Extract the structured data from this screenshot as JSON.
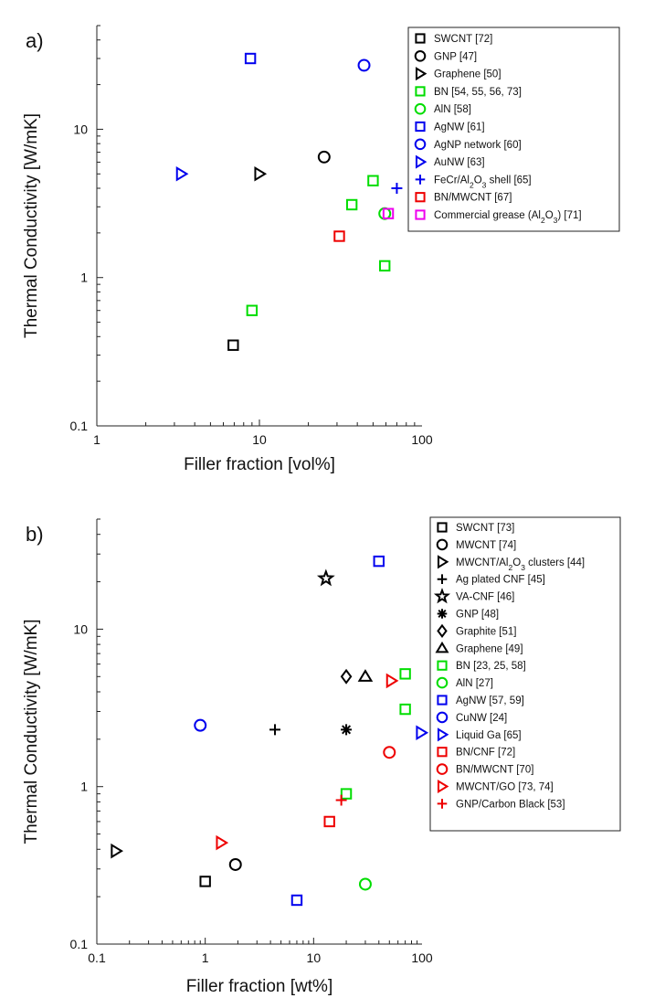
{
  "chart_data": [
    {
      "type": "scatter",
      "panel_label": "a)",
      "xlabel": "Filler fraction [vol%]",
      "ylabel": "Thermal Conductivity [W/mK]",
      "xscale": "log",
      "yscale": "log",
      "xlim": [
        1,
        100
      ],
      "ylim": [
        0.1,
        50
      ],
      "xticks": [
        {
          "value": 1,
          "label": "1"
        },
        {
          "value": 10,
          "label": "10"
        },
        {
          "value": 100,
          "label": "100"
        }
      ],
      "yticks": [
        {
          "value": 0.1,
          "label": "0.1"
        },
        {
          "value": 1,
          "label": "1"
        },
        {
          "value": 10,
          "label": "10"
        }
      ],
      "legend_position": "top-right",
      "series": [
        {
          "name": "SWCNT [72]",
          "marker": "square",
          "color": "#000000",
          "points": [
            {
              "x": 6.9,
              "y": 0.35
            }
          ]
        },
        {
          "name": "GNP [47]",
          "marker": "circle",
          "color": "#000000",
          "points": [
            {
              "x": 25,
              "y": 6.5
            }
          ]
        },
        {
          "name": "Graphene [50]",
          "marker": "triangle-right",
          "color": "#000000",
          "points": [
            {
              "x": 10,
              "y": 5.0
            }
          ]
        },
        {
          "name": "BN [54, 55, 56, 73]",
          "marker": "square",
          "color": "#00dd00",
          "points": [
            {
              "x": 9,
              "y": 0.6
            },
            {
              "x": 37,
              "y": 3.1
            },
            {
              "x": 50,
              "y": 4.5
            },
            {
              "x": 59,
              "y": 1.2
            }
          ]
        },
        {
          "name": "AlN [58]",
          "marker": "circle",
          "color": "#00dd00",
          "points": [
            {
              "x": 59,
              "y": 2.7
            }
          ]
        },
        {
          "name": "AgNW [61]",
          "marker": "square",
          "color": "#0000ee",
          "points": [
            {
              "x": 8.8,
              "y": 30
            }
          ]
        },
        {
          "name": "AgNP network [60]",
          "marker": "circle",
          "color": "#0000ee",
          "points": [
            {
              "x": 44,
              "y": 27
            }
          ]
        },
        {
          "name": "AuNW [63]",
          "marker": "triangle-right",
          "color": "#0000ee",
          "points": [
            {
              "x": 3.3,
              "y": 5.0
            }
          ]
        },
        {
          "name": "FeCr/Al₂O₃ shell [65]",
          "marker": "plus",
          "color": "#0000ee",
          "points": [
            {
              "x": 70,
              "y": 4.0
            }
          ]
        },
        {
          "name": "BN/MWCNT [67]",
          "marker": "square",
          "color": "#ee0000",
          "points": [
            {
              "x": 31,
              "y": 1.9
            }
          ]
        },
        {
          "name": "Commercial grease (Al₂O₃) [71]",
          "marker": "square",
          "color": "#ee00ee",
          "points": [
            {
              "x": 62,
              "y": 2.7
            }
          ]
        }
      ]
    },
    {
      "type": "scatter",
      "panel_label": "b)",
      "xlabel": "Filler fraction [wt%]",
      "ylabel": "Thermal Conductivity [W/mK]",
      "xscale": "log",
      "yscale": "log",
      "xlim": [
        0.1,
        100
      ],
      "ylim": [
        0.1,
        50
      ],
      "xticks": [
        {
          "value": 0.1,
          "label": "0.1"
        },
        {
          "value": 1,
          "label": "1"
        },
        {
          "value": 10,
          "label": "10"
        },
        {
          "value": 100,
          "label": "100"
        }
      ],
      "yticks": [
        {
          "value": 0.1,
          "label": "0.1"
        },
        {
          "value": 1,
          "label": "1"
        },
        {
          "value": 10,
          "label": "10"
        }
      ],
      "legend_position": "top-right",
      "series": [
        {
          "name": "SWCNT [73]",
          "marker": "square",
          "color": "#000000",
          "points": [
            {
              "x": 1.0,
              "y": 0.25
            }
          ]
        },
        {
          "name": "MWCNT [74]",
          "marker": "circle",
          "color": "#000000",
          "points": [
            {
              "x": 1.9,
              "y": 0.32
            }
          ]
        },
        {
          "name": "MWCNT/Al₂O₃ clusters [44]",
          "marker": "triangle-right",
          "color": "#000000",
          "points": [
            {
              "x": 0.15,
              "y": 0.39
            }
          ]
        },
        {
          "name": "Ag plated CNF [45]",
          "marker": "plus",
          "color": "#000000",
          "points": [
            {
              "x": 4.4,
              "y": 2.3
            }
          ]
        },
        {
          "name": "VA-CNF [46]",
          "marker": "star",
          "color": "#000000",
          "points": [
            {
              "x": 13,
              "y": 21
            }
          ]
        },
        {
          "name": "GNP [48]",
          "marker": "asterisk",
          "color": "#000000",
          "points": [
            {
              "x": 20,
              "y": 2.3
            }
          ]
        },
        {
          "name": "Graphite [51]",
          "marker": "diamond",
          "color": "#000000",
          "points": [
            {
              "x": 20,
              "y": 5.0
            }
          ]
        },
        {
          "name": "Graphene [49]",
          "marker": "triangle-up",
          "color": "#000000",
          "points": [
            {
              "x": 30,
              "y": 5.0
            }
          ]
        },
        {
          "name": "BN [23, 25, 58]",
          "marker": "square",
          "color": "#00dd00",
          "points": [
            {
              "x": 20,
              "y": 0.9
            },
            {
              "x": 70,
              "y": 5.2
            },
            {
              "x": 70,
              "y": 3.1
            }
          ]
        },
        {
          "name": "AlN [27]",
          "marker": "circle",
          "color": "#00dd00",
          "points": [
            {
              "x": 30,
              "y": 0.24
            }
          ]
        },
        {
          "name": "AgNW [57, 59]",
          "marker": "square",
          "color": "#0000ee",
          "points": [
            {
              "x": 7,
              "y": 0.19
            },
            {
              "x": 40,
              "y": 27
            }
          ]
        },
        {
          "name": "CuNW [24]",
          "marker": "circle",
          "color": "#0000ee",
          "points": [
            {
              "x": 0.9,
              "y": 2.45
            }
          ]
        },
        {
          "name": "Liquid Ga [65]",
          "marker": "triangle-right",
          "color": "#0000ee",
          "points": [
            {
              "x": 98,
              "y": 2.2
            }
          ]
        },
        {
          "name": "BN/CNF [72]",
          "marker": "square",
          "color": "#ee0000",
          "points": [
            {
              "x": 14,
              "y": 0.6
            }
          ]
        },
        {
          "name": "BN/MWCNT [70]",
          "marker": "circle",
          "color": "#ee0000",
          "points": [
            {
              "x": 50,
              "y": 1.65
            }
          ]
        },
        {
          "name": "MWCNT/GO [73, 74]",
          "marker": "triangle-right",
          "color": "#ee0000",
          "points": [
            {
              "x": 1.4,
              "y": 0.44
            },
            {
              "x": 52,
              "y": 4.7
            }
          ]
        },
        {
          "name": "GNP/Carbon Black [53]",
          "marker": "plus",
          "color": "#ee0000",
          "points": [
            {
              "x": 18,
              "y": 0.82
            }
          ]
        }
      ]
    }
  ]
}
